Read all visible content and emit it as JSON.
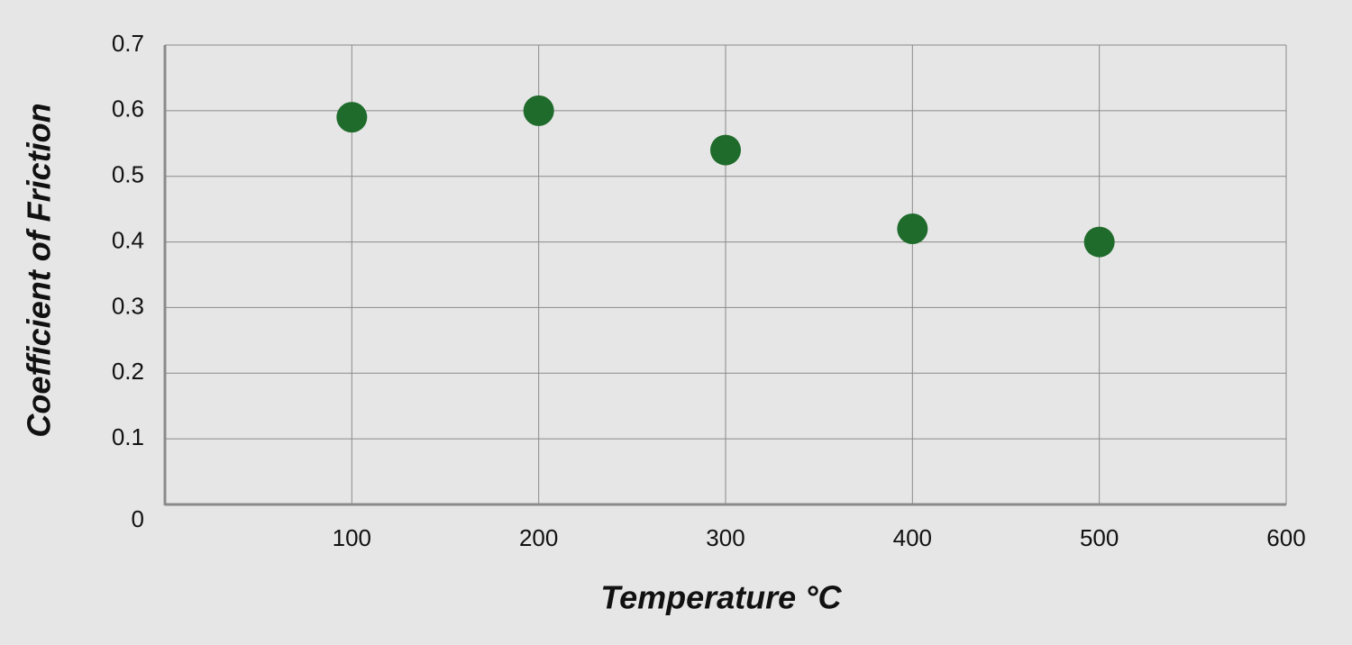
{
  "chart_data": {
    "type": "scatter",
    "x_label": "Temperature °C",
    "y_label": "Coefficient of Friction",
    "x": [
      100,
      200,
      300,
      400,
      500
    ],
    "values": [
      0.59,
      0.6,
      0.54,
      0.42,
      0.4
    ],
    "color": "#1f6b2b",
    "xlim": [
      0,
      600
    ],
    "xticks": [
      100,
      200,
      300,
      400,
      500,
      600
    ],
    "ylim": [
      0,
      0.7
    ],
    "yticks": [
      0,
      0.1,
      0.2,
      0.3,
      0.4,
      0.5,
      0.6,
      0.7
    ],
    "grid": true
  }
}
